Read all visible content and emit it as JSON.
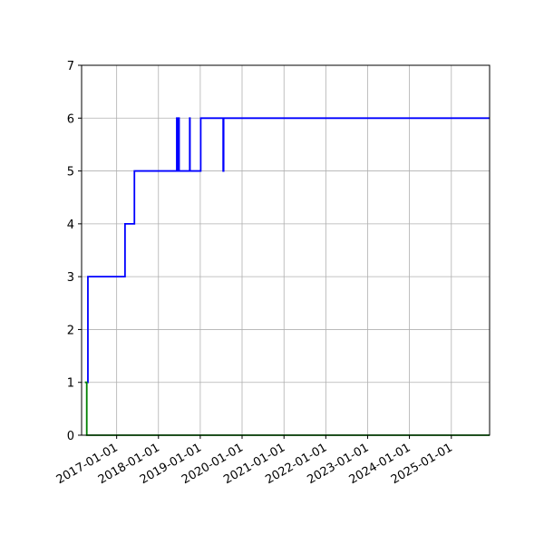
{
  "chart_data": {
    "type": "line",
    "title": "",
    "xlabel": "",
    "ylabel": "",
    "x_axis_type": "date",
    "xlim": [
      "2016-03-01",
      "2025-12-01"
    ],
    "ylim": [
      0,
      7
    ],
    "grid": true,
    "legend": "none",
    "y_ticks": [
      0,
      1,
      2,
      3,
      4,
      5,
      6,
      7
    ],
    "x_ticks": [
      "2017-01-01",
      "2018-01-01",
      "2019-01-01",
      "2020-01-01",
      "2021-01-01",
      "2022-01-01",
      "2023-01-01",
      "2024-01-01",
      "2025-01-01"
    ],
    "series": [
      {
        "color": "#0000ff",
        "step": true,
        "points": [
          [
            "2016-04-20",
            1
          ],
          [
            "2016-04-25",
            3
          ],
          [
            "2017-03-15",
            4
          ],
          [
            "2017-06-05",
            5
          ],
          [
            "2018-06-10",
            6
          ],
          [
            "2018-06-13",
            5
          ],
          [
            "2018-06-17",
            6
          ],
          [
            "2018-06-21",
            5
          ],
          [
            "2018-06-26",
            6
          ],
          [
            "2018-06-30",
            5
          ],
          [
            "2018-10-01",
            6
          ],
          [
            "2018-10-03",
            5
          ],
          [
            "2019-01-05",
            6
          ],
          [
            "2019-07-20",
            5
          ],
          [
            "2019-07-24",
            6
          ],
          [
            "2025-12-01",
            6
          ]
        ]
      },
      {
        "color": "#008000",
        "step": true,
        "points": [
          [
            "2016-03-30",
            1
          ],
          [
            "2016-04-15",
            0
          ],
          [
            "2025-12-01",
            0
          ]
        ]
      }
    ]
  }
}
